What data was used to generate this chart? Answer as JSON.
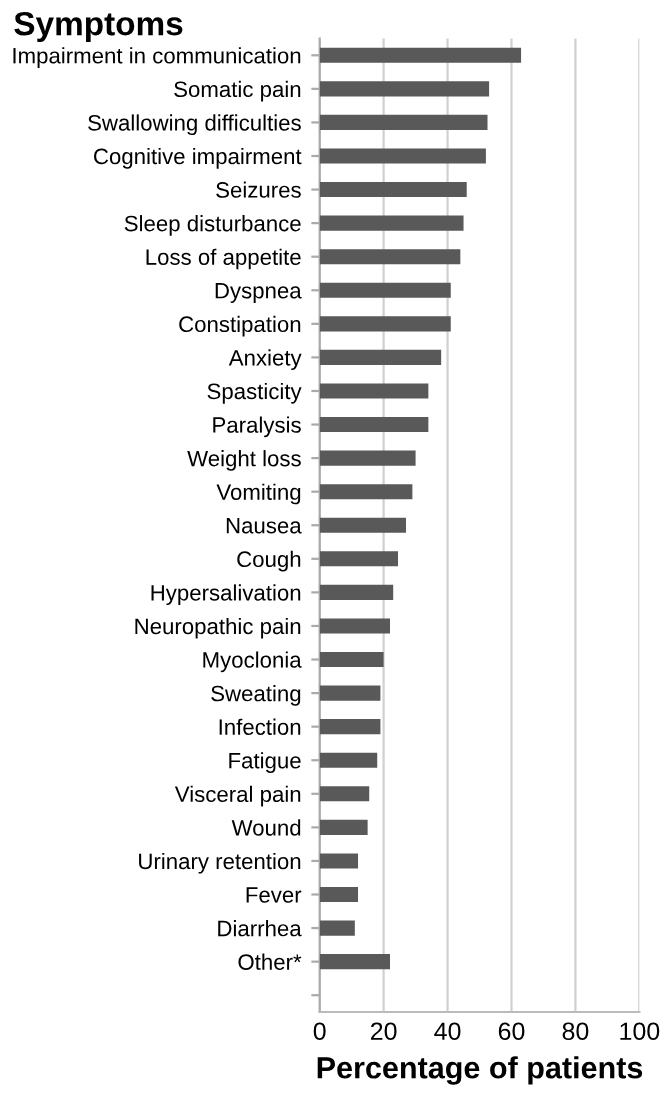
{
  "chart_data": {
    "type": "bar",
    "orientation": "horizontal",
    "title": "Symptoms",
    "xlabel": "Percentage of patients",
    "categories": [
      "Impairment in communication",
      "Somatic pain",
      "Swallowing difficulties",
      "Cognitive impairment",
      "Seizures",
      "Sleep disturbance",
      "Loss of appetite",
      "Dyspnea",
      "Constipation",
      "Anxiety",
      "Spasticity",
      "Paralysis",
      "Weight loss",
      "Vomiting",
      "Nausea",
      "Cough",
      "Hypersalivation",
      "Neuropathic pain",
      "Myoclonia",
      "Sweating",
      "Infection",
      "Fatigue",
      "Visceral pain",
      "Wound",
      "Urinary retention",
      "Fever",
      "Diarrhea",
      "Other*",
      null
    ],
    "values": [
      63,
      53,
      52.5,
      52,
      46,
      45,
      44,
      41,
      41,
      38,
      34,
      34,
      30,
      29,
      27,
      24.5,
      23,
      22,
      20,
      19,
      19,
      18,
      15.5,
      15,
      12,
      12,
      11,
      22,
      null
    ],
    "color": "#595959",
    "xlim": [
      0,
      100
    ],
    "xticks": [
      0,
      20,
      40,
      60,
      80,
      100
    ],
    "grid": "x"
  }
}
